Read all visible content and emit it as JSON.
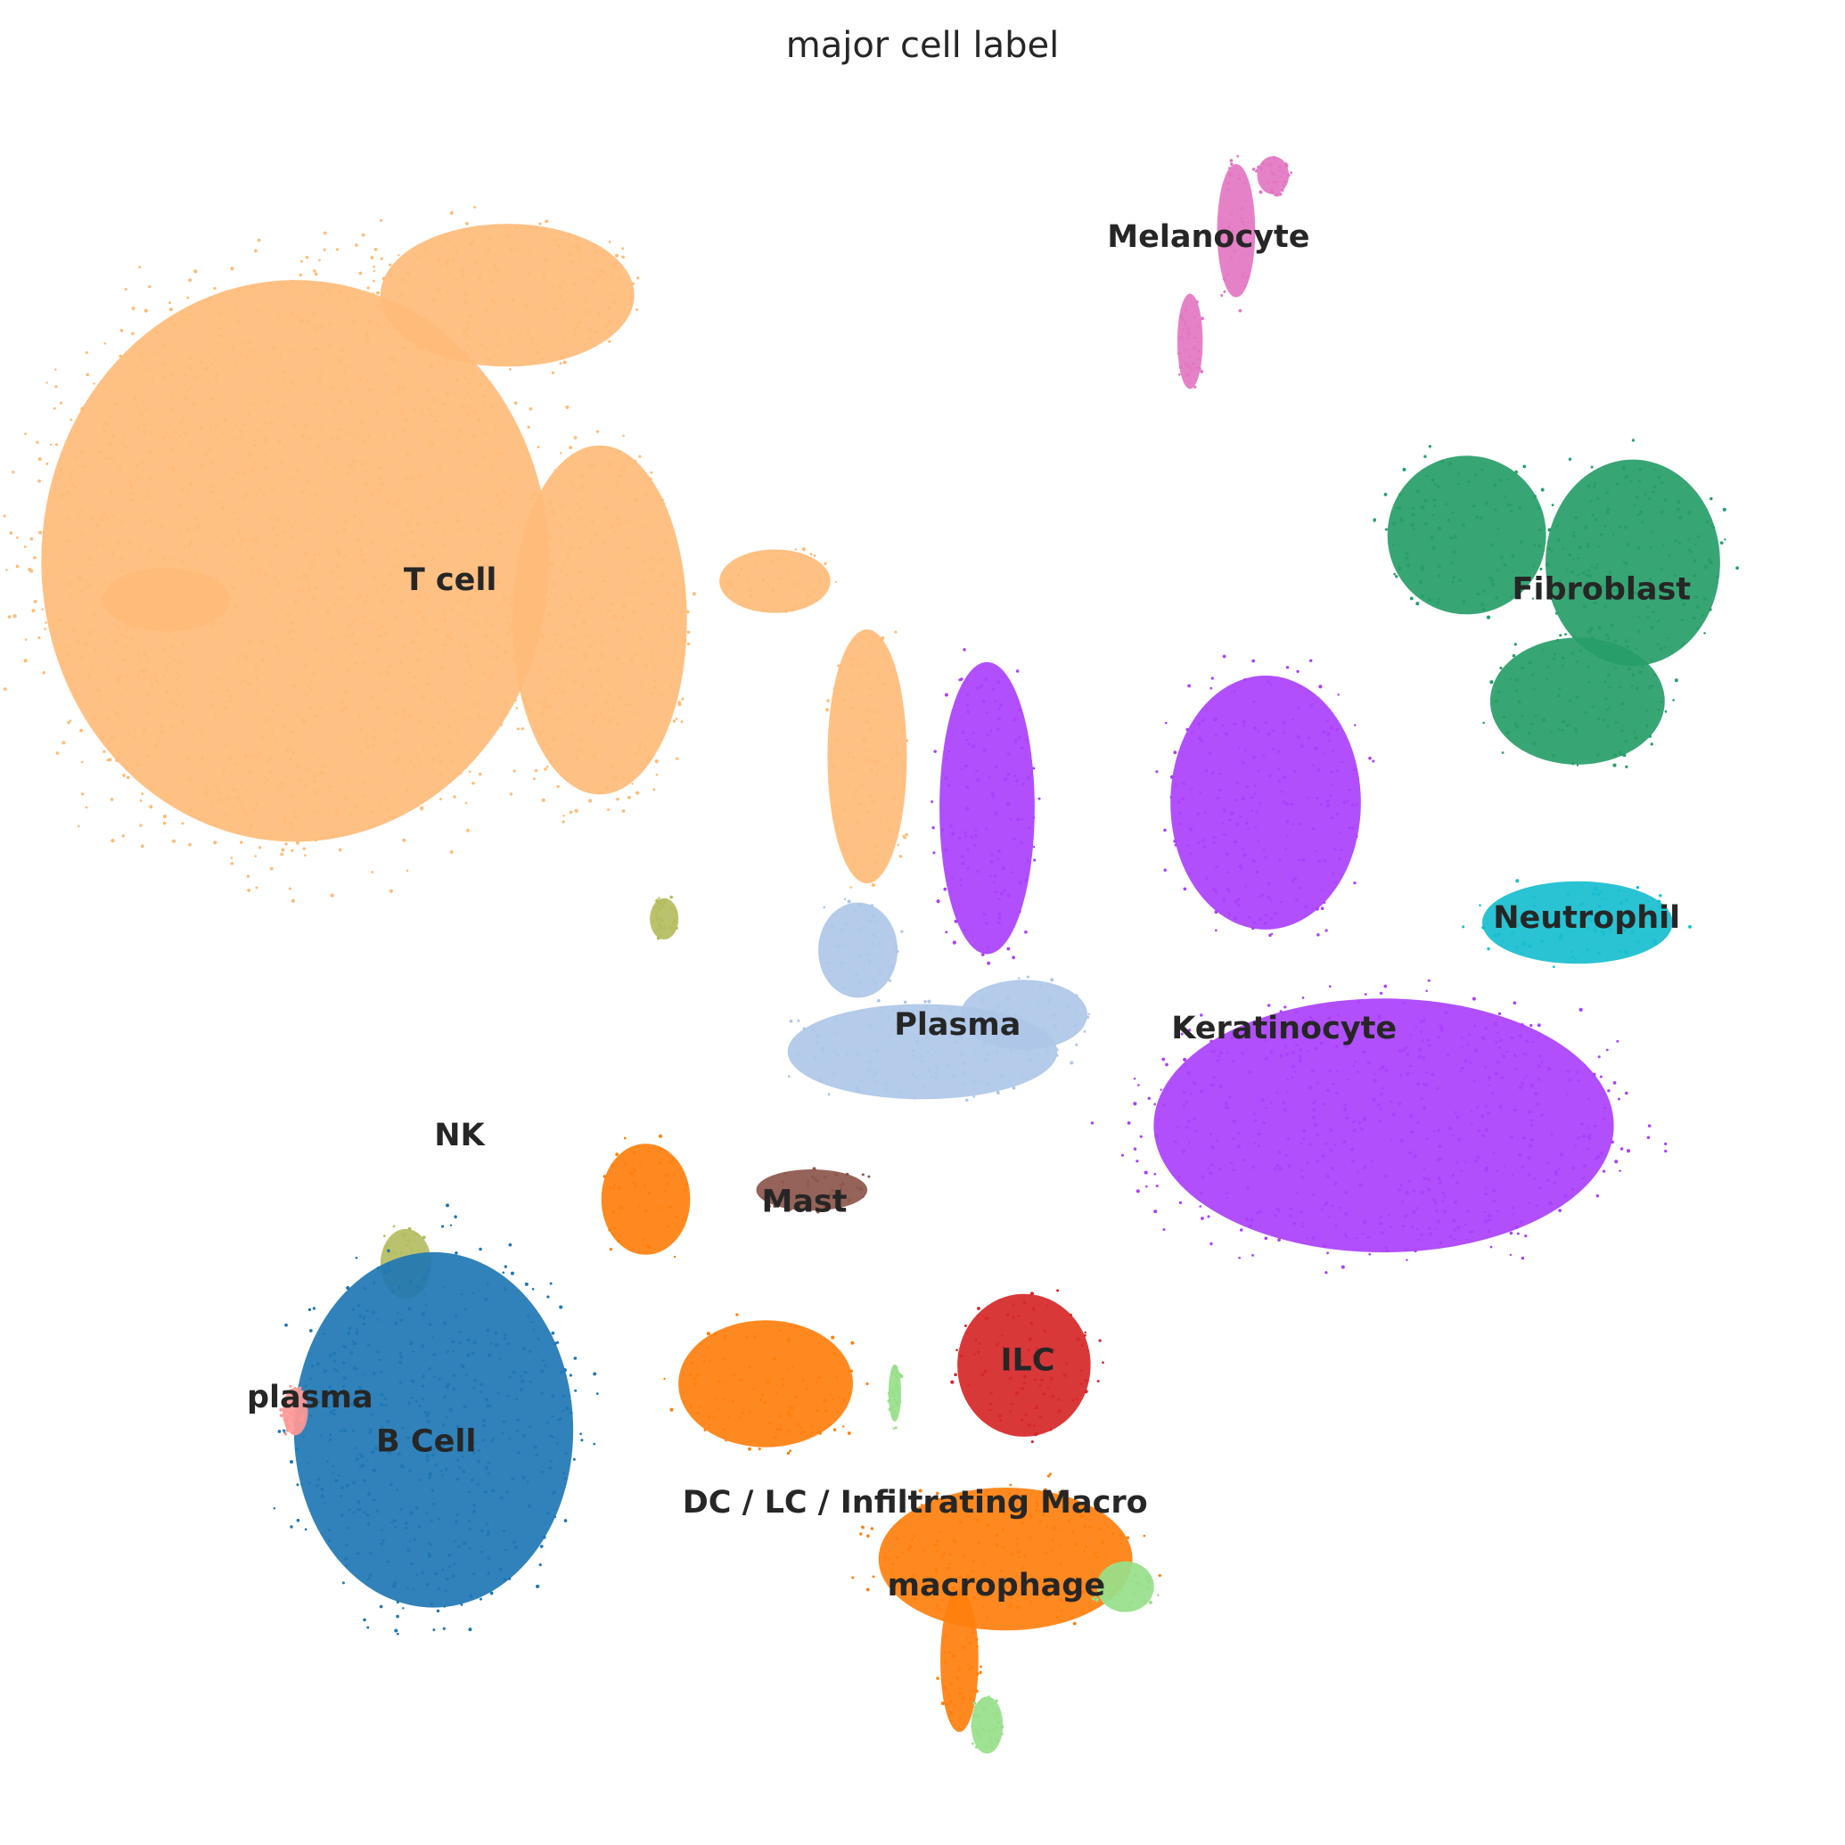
{
  "chart_data": {
    "type": "scatter",
    "title": "major cell label",
    "xlabel": "",
    "ylabel": "",
    "axes_visible": false,
    "grid": false,
    "legend": "none",
    "xlim": [
      0,
      100
    ],
    "ylim": [
      0,
      100
    ],
    "series": [
      {
        "name": "T cell",
        "color": "#ffbb78",
        "label_at": [
          24.4,
          31.5
        ],
        "regions": [
          [
            16.0,
            30.4,
            16.0,
            17.7
          ],
          [
            32.5,
            33.6,
            5.5,
            11.0
          ],
          [
            27.5,
            16.0,
            8.0,
            4.5
          ],
          [
            47.0,
            41.0,
            2.5,
            8.0
          ],
          [
            9.0,
            32.5,
            4.0,
            2.0
          ],
          [
            42.0,
            31.5,
            3.5,
            2.0
          ]
        ]
      },
      {
        "name": "Melanocyte",
        "color": "#e377c2",
        "label_at": [
          65.5,
          12.9
        ],
        "regions": [
          [
            67.0,
            12.5,
            1.2,
            4.2
          ],
          [
            64.5,
            18.5,
            0.8,
            3.0
          ],
          [
            69.0,
            9.5,
            1.0,
            1.2
          ]
        ]
      },
      {
        "name": "Fibroblast",
        "color": "#2ca02c",
        "color_display": "#279d69",
        "label_at": [
          86.8,
          32.0
        ],
        "regions": [
          [
            79.5,
            29.0,
            5.0,
            5.0
          ],
          [
            88.5,
            30.5,
            5.5,
            6.5
          ],
          [
            85.5,
            38.0,
            5.5,
            4.0
          ]
        ]
      },
      {
        "name": "Neutrophil",
        "color": "#17becf",
        "label_at": [
          86.0,
          49.8
        ],
        "regions": [
          [
            85.5,
            50.0,
            6.0,
            2.6
          ]
        ]
      },
      {
        "name": "Keratinocyte",
        "color": "#aa40fc",
        "label_at": [
          69.6,
          55.8
        ],
        "regions": [
          [
            68.6,
            43.5,
            6.0,
            8.0
          ],
          [
            75.0,
            61.0,
            14.5,
            8.0
          ],
          [
            53.5,
            43.8,
            3.0,
            9.2
          ]
        ]
      },
      {
        "name": "Plasma",
        "color": "#aec7e8",
        "label_at": [
          51.9,
          55.6
        ],
        "regions": [
          [
            50.0,
            57.0,
            8.5,
            3.0
          ],
          [
            55.5,
            55.0,
            4.0,
            2.2
          ],
          [
            46.5,
            51.5,
            2.5,
            3.0
          ]
        ]
      },
      {
        "name": "NK",
        "color": "#b5bd61",
        "label_at": [
          24.9,
          61.6
        ],
        "regions": [
          [
            22.0,
            68.5,
            1.6,
            2.2
          ],
          [
            36.0,
            49.8,
            0.9,
            1.3
          ]
        ]
      },
      {
        "name": "Mast",
        "color": "#8c564b",
        "label_at": [
          43.6,
          65.2
        ],
        "regions": [
          [
            44.0,
            64.5,
            3.5,
            1.3
          ]
        ]
      },
      {
        "name": "B Cell",
        "color": "#1f77b4",
        "label_at": [
          23.1,
          78.2
        ],
        "regions": [
          [
            23.5,
            77.5,
            8.8,
            11.2
          ]
        ]
      },
      {
        "name": "plasma",
        "color": "#ff9896",
        "label_at": [
          16.8,
          75.8
        ],
        "regions": [
          [
            16.0,
            76.5,
            0.8,
            1.5
          ]
        ]
      },
      {
        "name": "ILC",
        "color": "#d62728",
        "label_at": [
          55.7,
          73.8
        ],
        "regions": [
          [
            55.5,
            74.0,
            4.2,
            4.5
          ]
        ]
      },
      {
        "name": "DC / LC / Infiltrating Macro",
        "color": "#ff7f0e",
        "label_at": [
          49.6,
          81.5
        ],
        "regions": [
          [
            54.5,
            84.5,
            8.0,
            4.5
          ],
          [
            41.5,
            75.0,
            5.5,
            4.0
          ],
          [
            35.0,
            65.0,
            2.8,
            3.5
          ],
          [
            52.0,
            90.0,
            1.2,
            4.5
          ]
        ]
      },
      {
        "name": "macrophage",
        "color": "#98df8a",
        "label_at": [
          54.0,
          86.0
        ],
        "regions": [
          [
            61.0,
            86.0,
            1.8,
            1.6
          ],
          [
            53.5,
            93.5,
            1.0,
            1.8
          ],
          [
            48.5,
            75.5,
            0.4,
            1.8
          ]
        ]
      }
    ]
  }
}
